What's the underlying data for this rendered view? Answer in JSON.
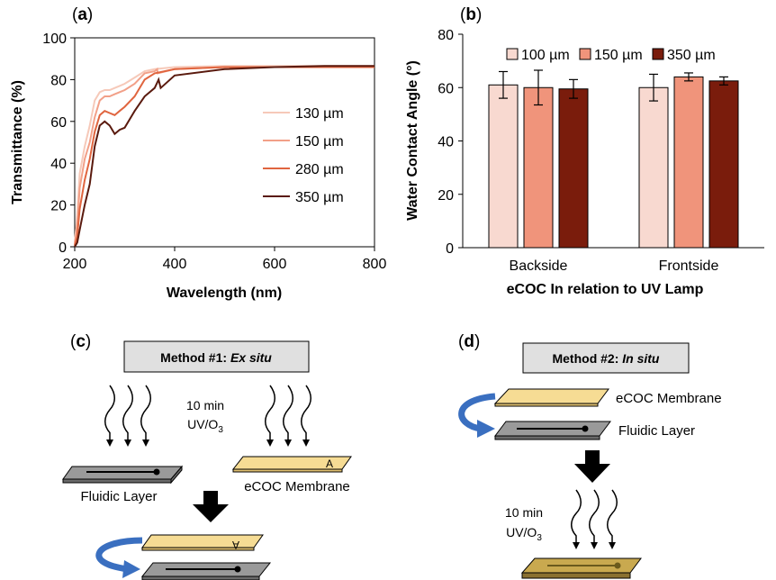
{
  "panels": {
    "a": {
      "label_pre": "(",
      "label_letter": "a",
      "label_post": ")"
    },
    "b": {
      "label_pre": "(",
      "label_letter": "b",
      "label_post": ")"
    },
    "c": {
      "label_pre": "(",
      "label_letter": "c",
      "label_post": ")"
    },
    "d": {
      "label_pre": "(",
      "label_letter": "d",
      "label_post": ")"
    }
  },
  "chart_data": [
    {
      "type": "line",
      "xlabel": "Wavelength (nm)",
      "ylabel": "Transmittance (%)",
      "xlim": [
        200,
        800
      ],
      "ylim": [
        0,
        100
      ],
      "xticks": [
        "200",
        "400",
        "600",
        "800"
      ],
      "yticks": [
        "0",
        "20",
        "40",
        "60",
        "80",
        "100"
      ],
      "grid": false,
      "legend_position": "right",
      "series": [
        {
          "name": "130 µm",
          "color": "#f6c9b9",
          "x": [
            200,
            205,
            210,
            220,
            230,
            240,
            250,
            260,
            270,
            280,
            290,
            300,
            320,
            340,
            360,
            400,
            500,
            600,
            700,
            800
          ],
          "y": [
            2,
            15,
            35,
            48,
            58,
            70,
            74,
            75,
            75,
            76,
            77,
            78,
            81,
            84,
            85,
            86,
            86.5,
            86.5,
            86.5,
            86.5
          ]
        },
        {
          "name": "150 µm",
          "color": "#f2a088",
          "x": [
            200,
            205,
            210,
            220,
            230,
            240,
            250,
            260,
            270,
            280,
            290,
            300,
            320,
            340,
            360,
            365,
            366,
            400,
            500,
            600,
            700,
            800
          ],
          "y": [
            1,
            10,
            28,
            42,
            50,
            62,
            70,
            72,
            72,
            73,
            74,
            75,
            78,
            83,
            84,
            85,
            83,
            85,
            86,
            86,
            86,
            86
          ]
        },
        {
          "name": "280 µm",
          "color": "#e0653f",
          "x": [
            200,
            205,
            210,
            220,
            230,
            240,
            250,
            260,
            270,
            280,
            290,
            300,
            320,
            340,
            360,
            400,
            500,
            600,
            700,
            800
          ],
          "y": [
            0.5,
            5,
            18,
            32,
            42,
            55,
            63,
            65,
            64,
            63,
            65,
            67,
            72,
            80,
            83,
            85,
            86,
            86,
            86,
            86
          ]
        },
        {
          "name": "350 µm",
          "color": "#5a1a0e",
          "x": [
            200,
            205,
            210,
            220,
            230,
            240,
            250,
            260,
            270,
            280,
            290,
            300,
            320,
            340,
            360,
            368,
            372,
            400,
            500,
            600,
            700,
            800
          ],
          "y": [
            0,
            2,
            8,
            20,
            30,
            48,
            58,
            60,
            58,
            54,
            56,
            57,
            65,
            72,
            76,
            80,
            76,
            82,
            85,
            86,
            86.5,
            86.5
          ]
        }
      ]
    },
    {
      "type": "bar",
      "xlabel": "eCOC In relation to UV Lamp",
      "ylabel": "Water Contact Angle (°)",
      "ylim": [
        0,
        80
      ],
      "yticks": [
        "0",
        "20",
        "40",
        "60",
        "80"
      ],
      "categories": [
        "Backside",
        "Frontside"
      ],
      "legend_position": "top",
      "series": [
        {
          "name": "100 µm",
          "color": "#f8d9d0",
          "values": [
            61,
            60
          ],
          "errors": [
            5,
            5
          ]
        },
        {
          "name": "150 µm",
          "color": "#f0947b",
          "values": [
            60,
            64
          ],
          "errors": [
            6.5,
            1.5
          ]
        },
        {
          "name": "350 µm",
          "color": "#7a1c0c",
          "values": [
            59.5,
            62.5
          ],
          "errors": [
            3.5,
            1.5
          ]
        }
      ]
    }
  ],
  "diagram_c": {
    "box_prefix": "Method #1: ",
    "box_italic": "Ex situ",
    "time_label": "10 min",
    "uv_label_main": "UV/O",
    "uv_label_sub": "3",
    "fluidic_label": "Fluidic Layer",
    "membrane_label": "eCOC Membrane",
    "membrane_mark": "A",
    "membrane_mark_flipped": "A"
  },
  "diagram_d": {
    "box_prefix": "Method #2: ",
    "box_italic": "In situ",
    "membrane_label": "eCOC Membrane",
    "fluidic_label": "Fluidic Layer",
    "time_label": "10 min",
    "uv_label_main": "UV/O",
    "uv_label_sub": "3"
  },
  "colors": {
    "membrane_fill": "#f6dc94",
    "layer_fill": "#9a9a9a",
    "box_fill": "#e0e0e0",
    "arrow_blue": "#3a6fc0",
    "bonded_fill": "#c9a94f"
  }
}
